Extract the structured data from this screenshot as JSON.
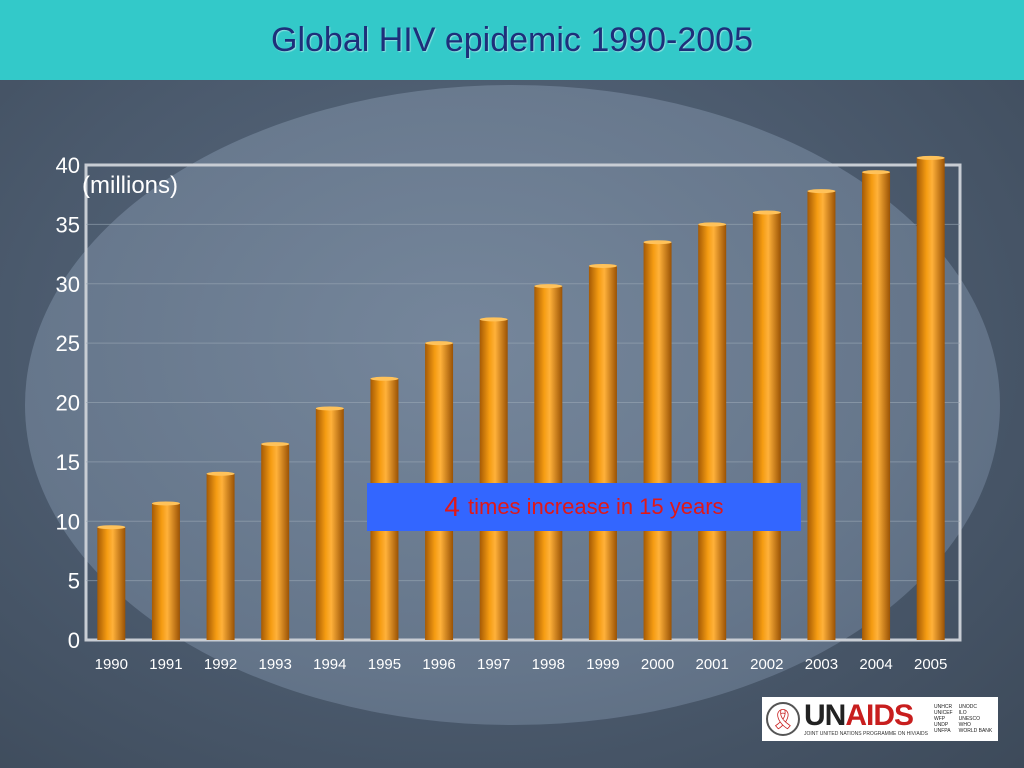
{
  "title": "Global  HIV epidemic 1990-2005",
  "callout": {
    "number": "4",
    "text": "times increase in 15  years"
  },
  "logo": {
    "name_prefix": "UN",
    "name_suffix": "AIDS",
    "subtitle": "JOINT UNITED NATIONS PROGRAMME ON HIV/AIDS",
    "cosponsors": [
      "UNHCR",
      "UNODC",
      "UNICEF",
      "ILO",
      "WFP",
      "UNESCO",
      "UNDP",
      "WHO",
      "UNFPA",
      "WORLD BANK"
    ]
  },
  "colors": {
    "header": "#33c9c9",
    "title": "#1e2f7a",
    "bar": "#e8900e",
    "callout_bg": "#3366ff",
    "callout_text": "#e01818"
  },
  "chart_data": {
    "type": "bar",
    "ylabel": "(millions)",
    "categories": [
      "1990",
      "1991",
      "1992",
      "1993",
      "1994",
      "1995",
      "1996",
      "1997",
      "1998",
      "1999",
      "2000",
      "2001",
      "2002",
      "2003",
      "2004",
      "2005"
    ],
    "values": [
      9.5,
      11.5,
      14.0,
      16.5,
      19.5,
      22.0,
      25.0,
      27.0,
      29.8,
      31.5,
      33.5,
      35.0,
      36.0,
      37.8,
      39.4,
      40.6
    ],
    "ylim": [
      0,
      40
    ],
    "yticks": [
      0,
      5,
      10,
      15,
      20,
      25,
      30,
      35,
      40
    ],
    "grid": true
  }
}
